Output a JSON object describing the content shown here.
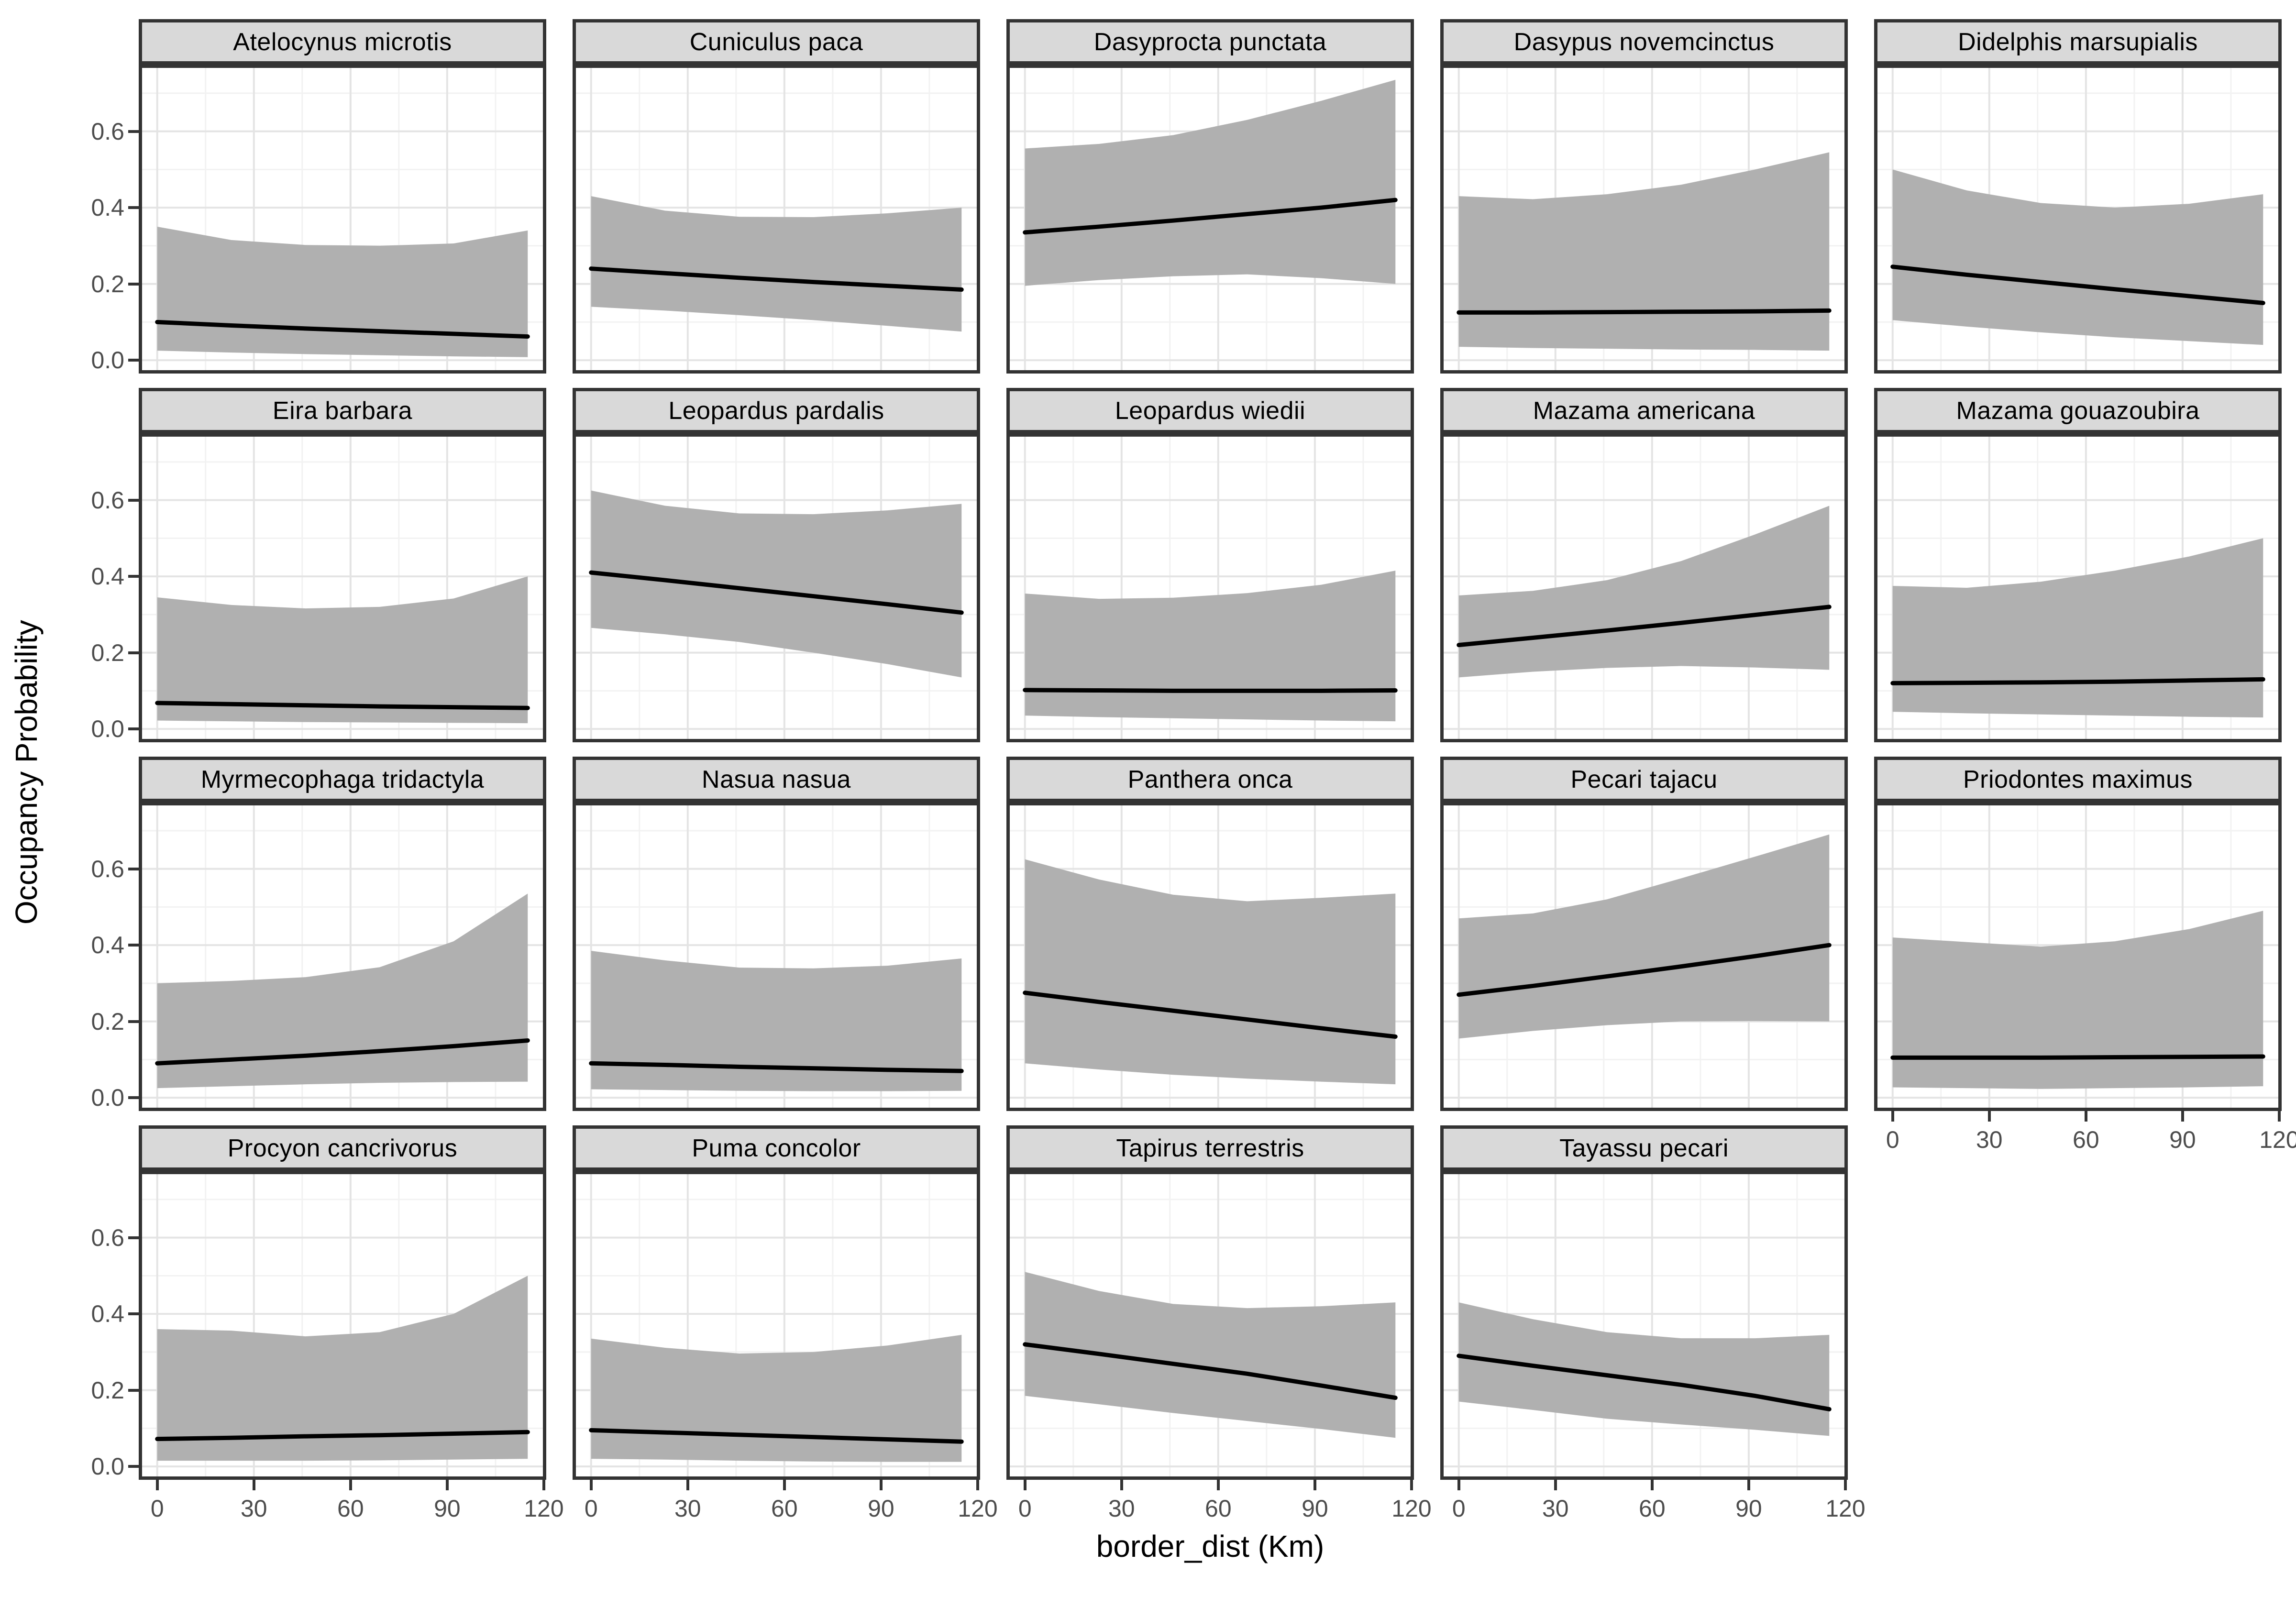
{
  "chart_data": {
    "type": "line",
    "title": "",
    "xlabel": "border_dist (Km)",
    "ylabel": "Occupancy Probability",
    "xlim": [
      -5.75,
      120.75
    ],
    "ylim": [
      -0.035,
      0.775
    ],
    "x_tick_values": [
      0,
      30,
      60,
      90,
      120
    ],
    "x_tick_labels": [
      "0",
      "30",
      "60",
      "90",
      "120"
    ],
    "x_minor_ticks": [
      15,
      45,
      75,
      105
    ],
    "y_tick_values": [
      0.0,
      0.2,
      0.4,
      0.6
    ],
    "y_tick_labels": [
      "0.0",
      "0.2",
      "0.4",
      "0.6"
    ],
    "y_minor_ticks": [
      0.1,
      0.3,
      0.5,
      0.7
    ],
    "grid": true,
    "legend_position": "none",
    "x": [
      0,
      23,
      46,
      69,
      92,
      115
    ],
    "facets": [
      {
        "species": "Atelocynus microtis",
        "mean": [
          0.1,
          0.091,
          0.083,
          0.076,
          0.069,
          0.062
        ],
        "lower": [
          0.025,
          0.02,
          0.016,
          0.013,
          0.01,
          0.008
        ],
        "upper": [
          0.35,
          0.315,
          0.302,
          0.3,
          0.306,
          0.34
        ]
      },
      {
        "species": "Cuniculus paca",
        "mean": [
          0.24,
          0.228,
          0.216,
          0.205,
          0.195,
          0.185
        ],
        "lower": [
          0.14,
          0.13,
          0.118,
          0.105,
          0.09,
          0.075
        ],
        "upper": [
          0.43,
          0.392,
          0.376,
          0.375,
          0.385,
          0.4
        ]
      },
      {
        "species": "Dasyprocta punctata",
        "mean": [
          0.335,
          0.35,
          0.366,
          0.383,
          0.4,
          0.42
        ],
        "lower": [
          0.195,
          0.21,
          0.22,
          0.225,
          0.215,
          0.2
        ],
        "upper": [
          0.555,
          0.567,
          0.59,
          0.63,
          0.68,
          0.735
        ]
      },
      {
        "species": "Dasypus novemcinctus",
        "mean": [
          0.125,
          0.125,
          0.126,
          0.127,
          0.128,
          0.13
        ],
        "lower": [
          0.035,
          0.032,
          0.03,
          0.028,
          0.027,
          0.025
        ],
        "upper": [
          0.43,
          0.422,
          0.435,
          0.46,
          0.5,
          0.545
        ]
      },
      {
        "species": "Didelphis marsupialis",
        "mean": [
          0.245,
          0.224,
          0.205,
          0.186,
          0.168,
          0.15
        ],
        "lower": [
          0.105,
          0.088,
          0.073,
          0.06,
          0.05,
          0.04
        ],
        "upper": [
          0.5,
          0.445,
          0.412,
          0.4,
          0.41,
          0.435
        ]
      },
      {
        "species": "Eira barbara",
        "mean": [
          0.068,
          0.065,
          0.062,
          0.059,
          0.057,
          0.055
        ],
        "lower": [
          0.022,
          0.02,
          0.018,
          0.017,
          0.016,
          0.015
        ],
        "upper": [
          0.345,
          0.325,
          0.316,
          0.32,
          0.342,
          0.4
        ]
      },
      {
        "species": "Leopardus pardalis",
        "mean": [
          0.41,
          0.39,
          0.369,
          0.348,
          0.327,
          0.305
        ],
        "lower": [
          0.265,
          0.248,
          0.228,
          0.2,
          0.17,
          0.135
        ],
        "upper": [
          0.625,
          0.585,
          0.565,
          0.563,
          0.573,
          0.59
        ]
      },
      {
        "species": "Leopardus wiedii",
        "mean": [
          0.102,
          0.101,
          0.1,
          0.1,
          0.1,
          0.101
        ],
        "lower": [
          0.035,
          0.031,
          0.028,
          0.025,
          0.022,
          0.02
        ],
        "upper": [
          0.355,
          0.341,
          0.344,
          0.356,
          0.378,
          0.415
        ]
      },
      {
        "species": "Mazama americana",
        "mean": [
          0.22,
          0.239,
          0.258,
          0.278,
          0.299,
          0.32
        ],
        "lower": [
          0.135,
          0.15,
          0.16,
          0.165,
          0.161,
          0.155
        ],
        "upper": [
          0.35,
          0.362,
          0.39,
          0.44,
          0.51,
          0.585
        ]
      },
      {
        "species": "Mazama gouazoubira",
        "mean": [
          0.12,
          0.121,
          0.122,
          0.124,
          0.127,
          0.13
        ],
        "lower": [
          0.045,
          0.041,
          0.038,
          0.035,
          0.032,
          0.03
        ],
        "upper": [
          0.375,
          0.37,
          0.386,
          0.415,
          0.452,
          0.5
        ]
      },
      {
        "species": "Myrmecophaga tridactyla",
        "mean": [
          0.09,
          0.1,
          0.11,
          0.122,
          0.135,
          0.15
        ],
        "lower": [
          0.025,
          0.03,
          0.035,
          0.039,
          0.041,
          0.042
        ],
        "upper": [
          0.3,
          0.306,
          0.316,
          0.342,
          0.41,
          0.535
        ]
      },
      {
        "species": "Nasua nasua",
        "mean": [
          0.09,
          0.086,
          0.081,
          0.077,
          0.073,
          0.07
        ],
        "lower": [
          0.022,
          0.02,
          0.018,
          0.017,
          0.017,
          0.018
        ],
        "upper": [
          0.385,
          0.36,
          0.341,
          0.339,
          0.346,
          0.365
        ]
      },
      {
        "species": "Panthera onca",
        "mean": [
          0.275,
          0.251,
          0.228,
          0.205,
          0.182,
          0.16
        ],
        "lower": [
          0.09,
          0.074,
          0.06,
          0.05,
          0.042,
          0.035
        ],
        "upper": [
          0.625,
          0.572,
          0.532,
          0.515,
          0.524,
          0.535
        ]
      },
      {
        "species": "Pecari tajacu",
        "mean": [
          0.27,
          0.293,
          0.318,
          0.344,
          0.371,
          0.4
        ],
        "lower": [
          0.155,
          0.175,
          0.19,
          0.2,
          0.201,
          0.2
        ],
        "upper": [
          0.47,
          0.483,
          0.52,
          0.575,
          0.632,
          0.69
        ]
      },
      {
        "species": "Priodontes maximus",
        "mean": [
          0.105,
          0.105,
          0.105,
          0.106,
          0.107,
          0.108
        ],
        "lower": [
          0.027,
          0.025,
          0.023,
          0.025,
          0.027,
          0.03
        ],
        "upper": [
          0.42,
          0.408,
          0.396,
          0.41,
          0.442,
          0.49
        ]
      },
      {
        "species": "Procyon cancrivorus",
        "mean": [
          0.072,
          0.075,
          0.079,
          0.082,
          0.086,
          0.09
        ],
        "lower": [
          0.015,
          0.015,
          0.015,
          0.016,
          0.018,
          0.02
        ],
        "upper": [
          0.36,
          0.356,
          0.341,
          0.352,
          0.4,
          0.5
        ]
      },
      {
        "species": "Puma concolor",
        "mean": [
          0.095,
          0.089,
          0.083,
          0.077,
          0.071,
          0.065
        ],
        "lower": [
          0.02,
          0.018,
          0.015,
          0.013,
          0.012,
          0.012
        ],
        "upper": [
          0.335,
          0.311,
          0.296,
          0.3,
          0.317,
          0.345
        ]
      },
      {
        "species": "Tapirus terrestris",
        "mean": [
          0.32,
          0.295,
          0.269,
          0.243,
          0.212,
          0.18
        ],
        "lower": [
          0.185,
          0.163,
          0.14,
          0.119,
          0.098,
          0.075
        ],
        "upper": [
          0.51,
          0.46,
          0.426,
          0.415,
          0.42,
          0.43
        ]
      },
      {
        "species": "Tayassu pecari",
        "mean": [
          0.29,
          0.264,
          0.239,
          0.214,
          0.185,
          0.15
        ],
        "lower": [
          0.17,
          0.148,
          0.125,
          0.11,
          0.096,
          0.08
        ],
        "upper": [
          0.43,
          0.386,
          0.352,
          0.336,
          0.336,
          0.345
        ]
      }
    ]
  },
  "style": {
    "strip_bg": "#d9d9d9",
    "strip_text": "#000000",
    "panel_bg": "#ffffff",
    "panel_border": "#333333",
    "grid_major": "#e4e4e4",
    "grid_minor": "#f2f2f2",
    "ribbon": "#b0b0b0",
    "line": "#000000",
    "tick_text": "#4d4d4d",
    "tick_mark": "#333333"
  }
}
